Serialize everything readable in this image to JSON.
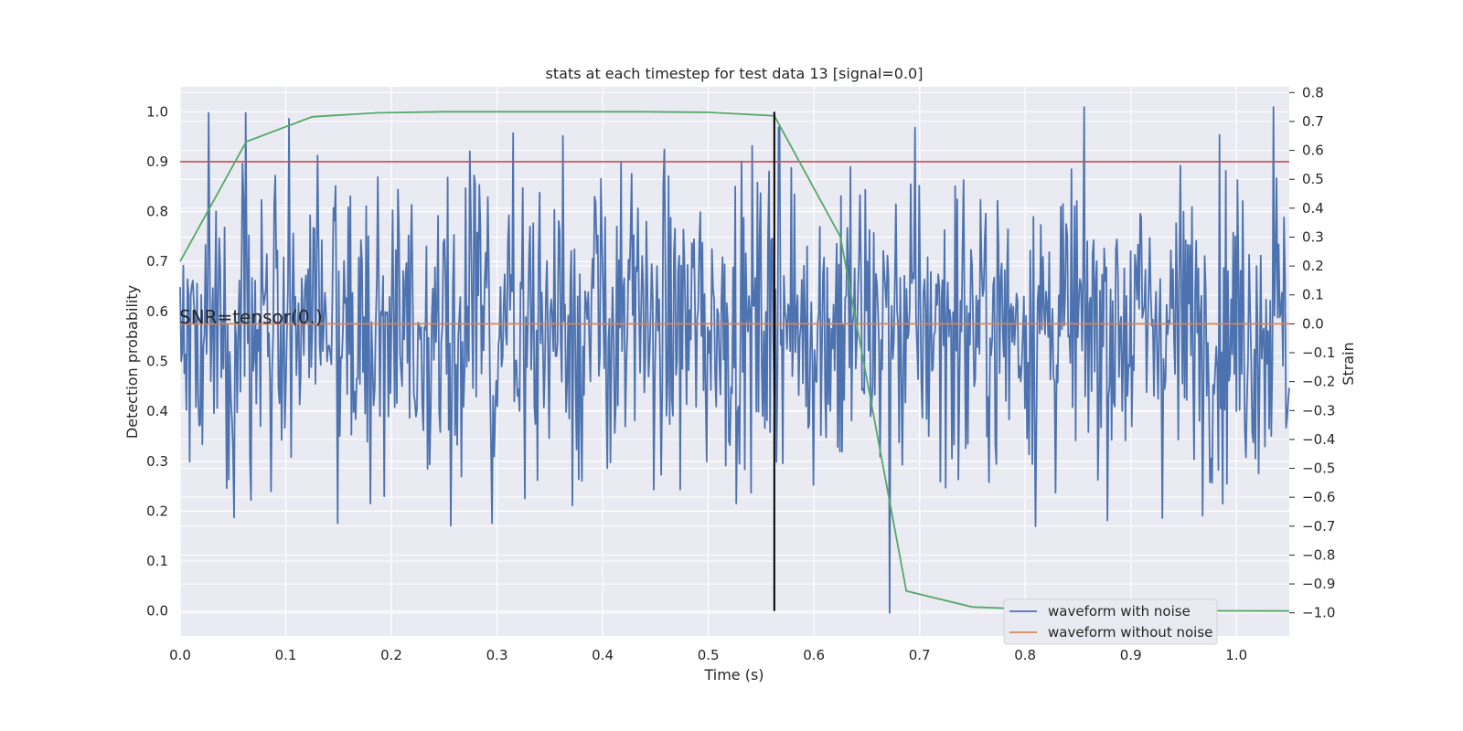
{
  "chart_data": {
    "type": "line",
    "title": "stats at each timestep for test data 13 [signal=0.0]",
    "xlabel": "Time (s)",
    "ylabel": "Detection probability",
    "y2label": "Strain",
    "xlim": [
      0.0,
      1.05
    ],
    "ylim": [
      -0.05,
      1.05
    ],
    "y2lim": [
      -1.08,
      0.82
    ],
    "xticks": [
      "0.0",
      "0.1",
      "0.2",
      "0.3",
      "0.4",
      "0.5",
      "0.6",
      "0.7",
      "0.8",
      "0.9",
      "1.0"
    ],
    "yticks": [
      "0.0",
      "0.1",
      "0.2",
      "0.3",
      "0.4",
      "0.5",
      "0.6",
      "0.7",
      "0.8",
      "0.9",
      "1.0"
    ],
    "y2ticks": [
      "−1.0",
      "−0.9",
      "−0.8",
      "−0.7",
      "−0.6",
      "−0.5",
      "−0.4",
      "−0.3",
      "−0.2",
      "−0.1",
      "0.0",
      "0.1",
      "0.2",
      "0.3",
      "0.4",
      "0.5",
      "0.6",
      "0.7",
      "0.8"
    ],
    "grid": true,
    "legend_position": "lower-right",
    "annotation": "SNR=tensor(0.)",
    "threshold": 0.9,
    "event_time": 0.5625,
    "colors": {
      "noisy": "#4c72b0",
      "clean": "#dd8452",
      "probability": "#55a868",
      "threshold": "#c44e52",
      "event": "#000000",
      "background": "#eaeaf2",
      "grid": "#ffffff"
    },
    "series": [
      {
        "name": "waveform with noise",
        "axis": "right",
        "samples": 1050,
        "x_range": [
          0.0,
          1.05
        ],
        "amplitude_range": [
          -1.0,
          0.75
        ],
        "note_peaks": [
          [
            0.027,
            0.73
          ],
          [
            0.062,
            0.73
          ],
          [
            0.103,
            0.71
          ],
          [
            0.315,
            0.66
          ],
          [
            0.362,
            0.65
          ],
          [
            0.567,
            0.68
          ],
          [
            1.035,
            0.75
          ],
          [
            0.149,
            -0.69
          ],
          [
            0.295,
            -0.69
          ],
          [
            0.672,
            -1.0
          ],
          [
            0.051,
            -0.67
          ]
        ]
      },
      {
        "name": "waveform without noise",
        "axis": "right",
        "x": [
          0.0,
          1.05
        ],
        "y": [
          0.0,
          0.0
        ]
      },
      {
        "name": "",
        "axis": "left",
        "x": [
          0.0,
          0.0625,
          0.125,
          0.1875,
          0.25,
          0.3125,
          0.375,
          0.4375,
          0.5,
          0.5625,
          0.625,
          0.6875,
          0.75,
          0.8125,
          0.875,
          0.9375,
          1.0,
          1.05
        ],
        "y": [
          0.7,
          0.94,
          0.99,
          0.998,
          1.0,
          1.0,
          1.0,
          1.0,
          0.999,
          0.992,
          0.75,
          0.04,
          0.008,
          0.003,
          0.001,
          0.0005,
          0.0003,
          0.0002
        ]
      }
    ]
  }
}
